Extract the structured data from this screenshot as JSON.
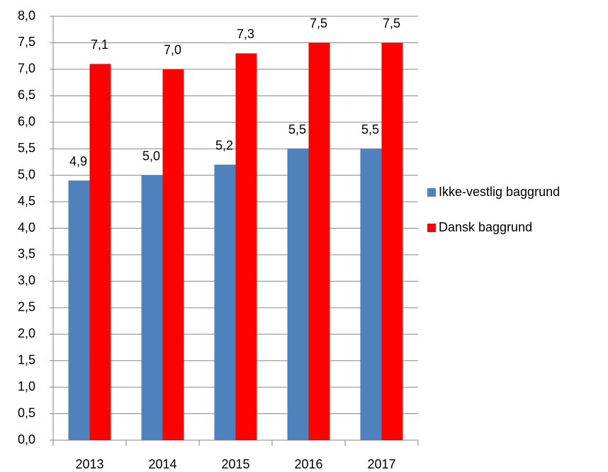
{
  "chart_data": {
    "type": "bar",
    "categories": [
      "2013",
      "2014",
      "2015",
      "2016",
      "2017"
    ],
    "series": [
      {
        "name": "Ikke-vestlig baggrund",
        "color": "#4f81bd",
        "values": [
          4.9,
          5.0,
          5.2,
          5.5,
          5.5
        ],
        "value_labels": [
          "4,9",
          "5,0",
          "5,2",
          "5,5",
          "5,5"
        ]
      },
      {
        "name": "Dansk baggrund",
        "color": "#ff0000",
        "values": [
          7.1,
          7.0,
          7.3,
          7.5,
          7.5
        ],
        "value_labels": [
          "7,1",
          "7,0",
          "7,3",
          "7,5",
          "7,5"
        ]
      }
    ],
    "ylim": [
      0,
      8
    ],
    "yticks": [
      {
        "value": 0,
        "label": "0,0"
      },
      {
        "value": 0.5,
        "label": "0,5"
      },
      {
        "value": 1,
        "label": "1,0"
      },
      {
        "value": 1.5,
        "label": "1,5"
      },
      {
        "value": 2,
        "label": "2,0"
      },
      {
        "value": 2.5,
        "label": "2,5"
      },
      {
        "value": 3,
        "label": "3,0"
      },
      {
        "value": 3.5,
        "label": "3,5"
      },
      {
        "value": 4,
        "label": "4,0"
      },
      {
        "value": 4.5,
        "label": "4,5"
      },
      {
        "value": 5,
        "label": "5,0"
      },
      {
        "value": 5.5,
        "label": "5,5"
      },
      {
        "value": 6,
        "label": "6,0"
      },
      {
        "value": 6.5,
        "label": "6,5"
      },
      {
        "value": 7,
        "label": "7,0"
      },
      {
        "value": 7.5,
        "label": "7,5"
      },
      {
        "value": 8,
        "label": "8,0"
      }
    ],
    "grid": true,
    "legend": "right"
  }
}
